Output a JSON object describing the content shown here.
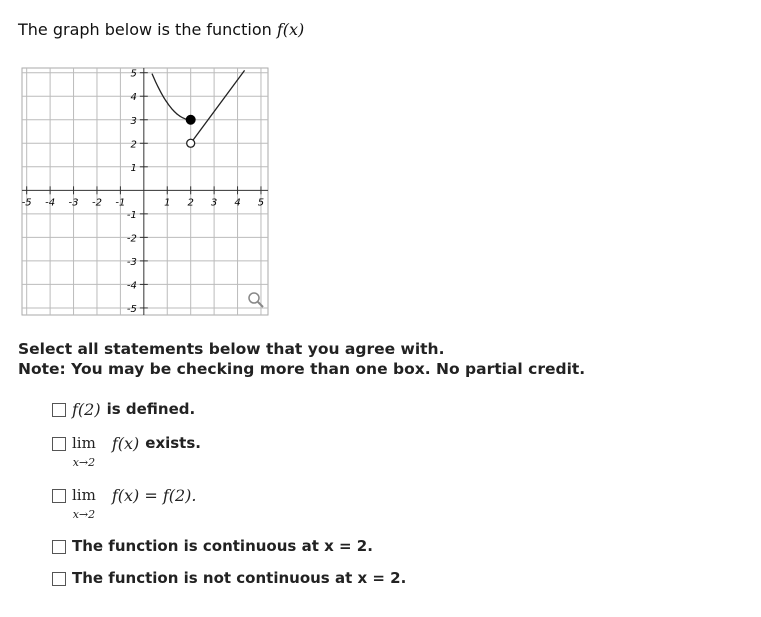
{
  "header": {
    "text": "The graph below is the function",
    "math": "f(x)"
  },
  "graph": {
    "xticks": [
      -5,
      -4,
      -3,
      -2,
      -1,
      1,
      2,
      3,
      4,
      5
    ],
    "yticks": [
      5,
      4,
      3,
      2,
      1,
      -1,
      -2,
      -3,
      -4,
      -5
    ],
    "xlim": [
      -5.2,
      5.3
    ],
    "ylim": [
      -5.3,
      5.2
    ]
  },
  "instructions": [
    "Select all statements below that you agree with.",
    "Note: You may be checking more than one box. No partial credit."
  ],
  "options": [
    {
      "math": "f(2)",
      "text": "is defined."
    },
    {
      "lim": "lim",
      "sub": "x→2",
      "math": "f(x)",
      "text": "exists."
    },
    {
      "lim": "lim",
      "sub": "x→2",
      "math": "f(x) = f(2)."
    },
    {
      "text": "The function is continuous at x = 2."
    },
    {
      "text": "The function is not continuous at x = 2."
    }
  ]
}
